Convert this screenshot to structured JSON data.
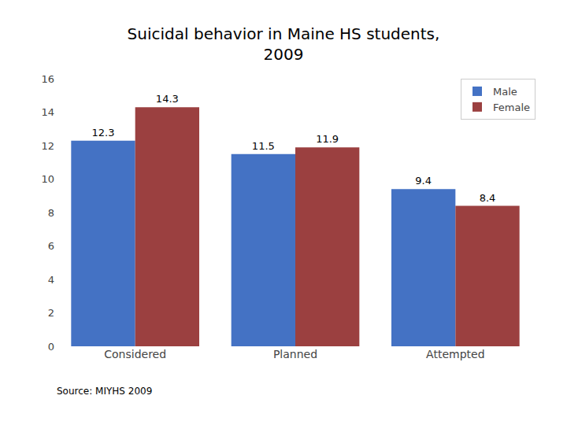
{
  "chart_data": {
    "type": "bar",
    "title": "Suicidal behavior in Maine HS students,\n2009",
    "categories": [
      "Considered",
      "Planned",
      "Attempted"
    ],
    "series": [
      {
        "name": "Male",
        "color": "#4472C4",
        "values": [
          12.3,
          11.5,
          9.4
        ]
      },
      {
        "name": "Female",
        "color": "#9B4040",
        "values": [
          14.3,
          11.9,
          8.4
        ]
      }
    ],
    "ylim": [
      0,
      16
    ],
    "yticks": [
      0,
      2,
      4,
      6,
      8,
      10,
      12,
      14,
      16
    ],
    "grid": false,
    "legend": "upper right",
    "data_labels": true,
    "annotations": [
      "Source: MIYHS 2009"
    ]
  }
}
